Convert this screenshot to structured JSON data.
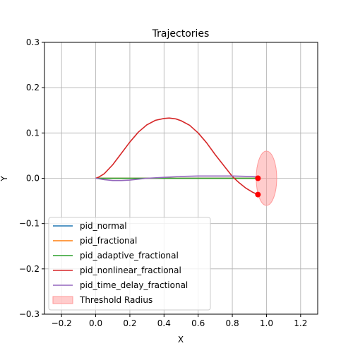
{
  "chart_data": {
    "type": "line",
    "title": "Trajectories",
    "xlabel": "X",
    "ylabel": "Y",
    "xlim": [
      -0.3,
      1.3
    ],
    "ylim": [
      -0.3,
      0.3
    ],
    "x_ticks": [
      -0.2,
      0.0,
      0.2,
      0.4,
      0.6,
      0.8,
      1.0,
      1.2
    ],
    "x_tick_labels": [
      "−0.2",
      "0.0",
      "0.2",
      "0.4",
      "0.6",
      "0.8",
      "1.0",
      "1.2"
    ],
    "y_ticks": [
      -0.3,
      -0.2,
      -0.1,
      0.0,
      0.1,
      0.2,
      0.3
    ],
    "y_tick_labels": [
      "−0.3",
      "−0.2",
      "−0.1",
      "0.0",
      "0.1",
      "0.2",
      "0.3"
    ],
    "grid": true,
    "legend_position": "lower-left",
    "series": [
      {
        "name": "pid_normal",
        "color": "#1f77b4",
        "x": [
          0.0,
          0.1,
          0.2,
          0.3,
          0.4,
          0.5,
          0.6,
          0.7,
          0.8,
          0.9,
          0.95
        ],
        "y": [
          0.0,
          0.0,
          0.0,
          0.0,
          0.0,
          0.0,
          0.0,
          0.0,
          0.0,
          0.0,
          0.0
        ]
      },
      {
        "name": "pid_fractional",
        "color": "#ff7f0e",
        "x": [
          0.0,
          0.1,
          0.2,
          0.3,
          0.4,
          0.5,
          0.6,
          0.7,
          0.8,
          0.9,
          0.95
        ],
        "y": [
          0.0,
          0.0,
          0.0,
          0.0,
          0.0,
          0.0,
          0.0,
          0.0,
          0.0,
          0.0,
          0.0
        ]
      },
      {
        "name": "pid_adaptive_fractional",
        "color": "#2ca02c",
        "x": [
          0.0,
          0.1,
          0.2,
          0.3,
          0.4,
          0.5,
          0.6,
          0.7,
          0.8,
          0.9,
          0.95
        ],
        "y": [
          0.0,
          0.0,
          0.0,
          0.0,
          0.0,
          0.0,
          0.0,
          0.0,
          0.0,
          0.0,
          0.0
        ]
      },
      {
        "name": "pid_nonlinear_fractional",
        "color": "#d62728",
        "x": [
          0.0,
          0.02,
          0.05,
          0.1,
          0.15,
          0.2,
          0.25,
          0.3,
          0.35,
          0.4,
          0.43,
          0.47,
          0.5,
          0.55,
          0.6,
          0.65,
          0.7,
          0.75,
          0.8,
          0.84,
          0.88,
          0.92,
          0.95
        ],
        "y": [
          0.0,
          0.003,
          0.01,
          0.03,
          0.055,
          0.08,
          0.102,
          0.118,
          0.128,
          0.132,
          0.133,
          0.131,
          0.127,
          0.117,
          0.1,
          0.078,
          0.052,
          0.028,
          0.004,
          -0.01,
          -0.022,
          -0.031,
          -0.036
        ]
      },
      {
        "name": "pid_time_delay_fractional",
        "color": "#9467bd",
        "x": [
          0.0,
          0.05,
          0.1,
          0.15,
          0.2,
          0.3,
          0.4,
          0.5,
          0.6,
          0.7,
          0.8,
          0.9,
          0.95
        ],
        "y": [
          0.0,
          -0.003,
          -0.005,
          -0.005,
          -0.004,
          0.0,
          0.002,
          0.004,
          0.005,
          0.005,
          0.005,
          0.004,
          0.003
        ]
      }
    ],
    "endpoints": [
      {
        "x": 0.95,
        "y": 0.0
      },
      {
        "x": 0.95,
        "y": -0.036
      }
    ],
    "threshold": {
      "name": "Threshold Radius",
      "center": [
        1.0,
        0.0
      ],
      "radius_x": 0.06,
      "radius_y": 0.06,
      "color": "#ff9999"
    }
  }
}
